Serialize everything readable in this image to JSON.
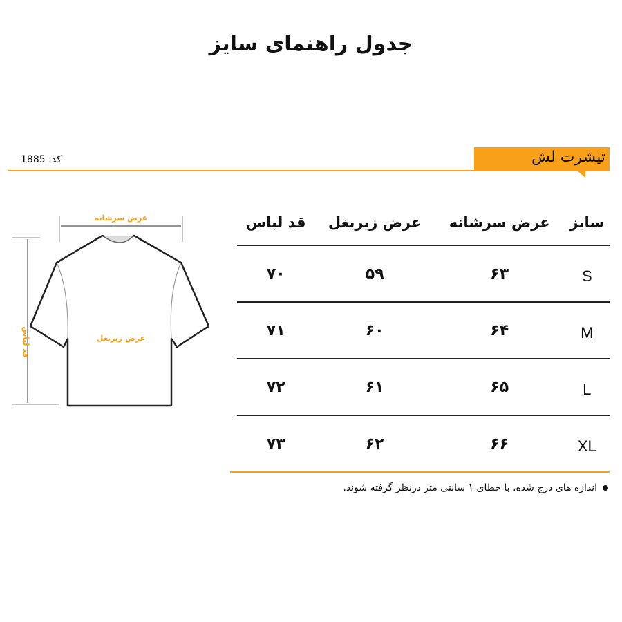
{
  "title": "جدول راهنمای سایز",
  "product": {
    "name": "تیشرت لش",
    "code": "کد: 1885"
  },
  "accent_color": "#f9a01b",
  "diagram": {
    "shoulder_label": "عرض سرشانه",
    "chest_label": "عرض زیربغل",
    "length_label": "قد لباس"
  },
  "table": {
    "headers": [
      "سایز",
      "عرض سرشانه",
      "عرض زیربغل",
      "قد لباس"
    ],
    "rows": [
      [
        "S",
        "۶۳",
        "۵۹",
        "۷۰"
      ],
      [
        "M",
        "۶۴",
        "۶۰",
        "۷۱"
      ],
      [
        "L",
        "۶۵",
        "۶۱",
        "۷۲"
      ],
      [
        "XL",
        "۶۶",
        "۶۲",
        "۷۳"
      ]
    ]
  },
  "note": "اندازه های درج شده، با خطای ۱ سانتی متر درنظر گرفته شوند."
}
